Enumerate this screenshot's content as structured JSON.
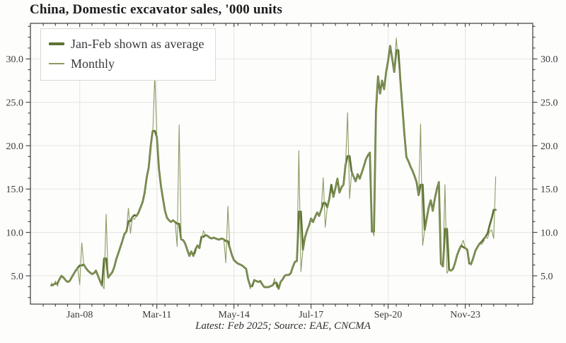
{
  "chart_data": {
    "type": "line",
    "title": "China, Domestic excavator sales, '000 units",
    "source_note": "Latest: Feb 2025; Source: EAE, CNCMA",
    "legend_position": "top-left",
    "grid": true,
    "start_month": "2006-11",
    "end_month": "2025-02",
    "ylim": [
      1.7,
      34.3
    ],
    "y_ticks": [
      5,
      10,
      15,
      20,
      25,
      30
    ],
    "y_tick_format": "X.0",
    "y_minor_step": 1.25,
    "x_minor_step_months": 6,
    "x_ticks": [
      {
        "label": "Jan-08",
        "index": 14
      },
      {
        "label": "Mar-11",
        "index": 52
      },
      {
        "label": "May-14",
        "index": 90
      },
      {
        "label": "Jul-17",
        "index": 128
      },
      {
        "label": "Sep-20",
        "index": 166
      },
      {
        "label": "Nov-23",
        "index": 204
      }
    ],
    "colors": {
      "grid": "#e8e8e4",
      "axis": "#3c3c3c",
      "text": "#3a3a3a"
    },
    "series": [
      {
        "name": "Jan-Feb shown as average",
        "color": "#5d7433",
        "width": 2.7,
        "values": [
          3.9,
          4.0,
          4.1,
          4.1,
          4.6,
          5.0,
          4.8,
          4.5,
          4.3,
          4.4,
          4.8,
          5.2,
          5.6,
          5.9,
          6.2,
          6.2,
          6.3,
          5.9,
          5.6,
          5.4,
          5.2,
          5.3,
          5.6,
          5.0,
          4.4,
          3.9,
          7.0,
          7.0,
          4.8,
          5.1,
          5.4,
          6.0,
          6.9,
          7.6,
          8.3,
          9.0,
          9.8,
          10.1,
          11.3,
          11.3,
          11.8,
          12.0,
          11.9,
          12.3,
          12.9,
          13.5,
          14.6,
          16.3,
          17.5,
          20.0,
          21.7,
          21.7,
          21.0,
          17.4,
          15.4,
          13.9,
          12.5,
          11.7,
          11.4,
          11.2,
          11.4,
          11.2,
          11.0,
          11.0,
          9.2,
          9.1,
          8.7,
          8.0,
          7.3,
          7.8,
          7.3,
          8.0,
          8.5,
          8.2,
          9.5,
          9.5,
          9.7,
          9.6,
          9.4,
          9.3,
          9.4,
          9.3,
          9.2,
          9.2,
          9.3,
          9.2,
          9.0,
          9.0,
          8.2,
          7.4,
          6.8,
          6.6,
          6.4,
          6.3,
          6.2,
          6.0,
          5.8,
          4.6,
          3.8,
          3.8,
          4.5,
          4.4,
          4.3,
          4.4,
          4.0,
          3.7,
          3.7,
          3.7,
          3.8,
          3.9,
          4.2,
          4.2,
          3.5,
          4.3,
          4.6,
          5.0,
          5.1,
          5.1,
          5.3,
          6.0,
          6.6,
          6.7,
          12.4,
          12.4,
          8.0,
          9.4,
          10.2,
          10.8,
          11.6,
          11.2,
          11.8,
          12.3,
          11.9,
          12.6,
          13.4,
          13.4,
          12.9,
          13.9,
          15.5,
          14.1,
          15.1,
          16.2,
          14.6,
          15.2,
          15.5,
          17.8,
          18.8,
          18.8,
          17.0,
          16.4,
          15.9,
          16.7,
          16.2,
          16.9,
          17.6,
          18.4,
          18.9,
          19.2,
          10.1,
          10.1,
          24.0,
          28.0,
          26.0,
          27.5,
          26.5,
          28.5,
          29.8,
          31.5,
          30.0,
          28.5,
          31.0,
          31.0,
          27.6,
          24.5,
          21.3,
          18.7,
          18.2,
          17.6,
          17.1,
          16.5,
          15.8,
          14.3,
          15.5,
          15.5,
          10.3,
          11.6,
          12.9,
          13.7,
          12.5,
          13.9,
          15.0,
          15.8,
          6.4,
          6.1,
          10.4,
          10.4,
          5.7,
          5.6,
          5.8,
          6.5,
          7.4,
          8.0,
          8.5,
          8.3,
          8.2,
          8.0,
          6.4,
          6.4,
          7.1,
          7.9,
          8.3,
          8.7,
          8.9,
          9.2,
          9.5,
          9.9,
          10.8,
          11.6,
          12.6,
          12.6
        ]
      },
      {
        "name": "Monthly",
        "color": "#8d9b63",
        "width": 1.1,
        "values": [
          4.2,
          3.8,
          4.4,
          3.8,
          4.6,
          5.0,
          4.8,
          4.5,
          4.3,
          4.4,
          4.8,
          5.2,
          5.6,
          5.9,
          4.0,
          8.8,
          6.3,
          5.9,
          5.6,
          5.4,
          5.2,
          5.3,
          5.6,
          5.0,
          4.4,
          3.9,
          3.5,
          12.1,
          4.8,
          5.1,
          5.4,
          6.0,
          6.9,
          7.6,
          8.3,
          9.0,
          9.8,
          10.1,
          12.8,
          9.9,
          11.8,
          11.5,
          11.9,
          12.3,
          12.9,
          13.5,
          14.6,
          16.3,
          17.5,
          20.0,
          21.3,
          28.2,
          21.0,
          17.4,
          15.4,
          13.9,
          12.5,
          11.7,
          11.4,
          11.2,
          11.4,
          11.2,
          8.4,
          22.4,
          9.2,
          9.1,
          8.7,
          8.0,
          7.3,
          7.8,
          7.3,
          7.6,
          8.5,
          8.2,
          9.0,
          10.2,
          9.7,
          9.6,
          9.4,
          9.3,
          9.4,
          9.3,
          9.2,
          9.2,
          9.3,
          9.2,
          6.5,
          13.0,
          8.2,
          7.4,
          6.8,
          6.6,
          6.4,
          6.3,
          6.2,
          6.0,
          5.8,
          4.6,
          3.5,
          4.1,
          4.5,
          4.4,
          4.3,
          4.4,
          4.0,
          3.7,
          3.7,
          3.7,
          3.8,
          3.9,
          4.7,
          3.7,
          3.5,
          4.3,
          4.6,
          5.0,
          5.1,
          5.1,
          5.3,
          6.0,
          6.6,
          6.7,
          19.4,
          5.5,
          8.0,
          9.4,
          10.2,
          10.8,
          11.6,
          11.2,
          11.8,
          12.3,
          11.9,
          12.6,
          16.3,
          10.6,
          12.9,
          13.9,
          14.8,
          14.1,
          15.1,
          16.2,
          14.6,
          15.2,
          15.5,
          17.8,
          23.8,
          13.9,
          17.0,
          16.4,
          15.9,
          16.7,
          16.2,
          16.9,
          17.6,
          18.4,
          18.9,
          19.2,
          10.4,
          9.6,
          24.0,
          28.0,
          26.0,
          27.5,
          26.5,
          28.5,
          29.8,
          31.5,
          30.0,
          28.5,
          32.4,
          29.6,
          27.6,
          24.5,
          21.3,
          18.7,
          18.2,
          17.6,
          17.1,
          16.5,
          15.8,
          14.3,
          22.5,
          8.5,
          10.3,
          11.6,
          12.9,
          13.7,
          12.5,
          13.9,
          15.0,
          15.8,
          6.4,
          6.1,
          15.5,
          5.3,
          5.7,
          5.6,
          5.8,
          6.5,
          7.4,
          8.0,
          8.5,
          9.1,
          8.2,
          8.0,
          6.6,
          6.2,
          7.1,
          7.9,
          8.3,
          8.7,
          8.6,
          8.9,
          9.5,
          9.3,
          10.1,
          10.3,
          9.3,
          16.4
        ]
      }
    ]
  }
}
